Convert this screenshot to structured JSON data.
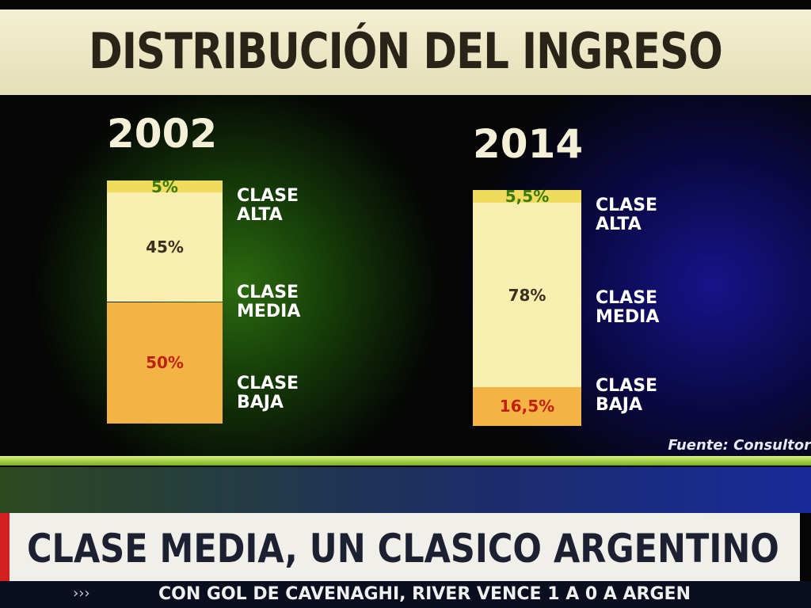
{
  "chart_data": {
    "type": "bar",
    "stacked": true,
    "title": "DISTRIBUCIÓN DEL INGRESO",
    "categories": [
      "2002",
      "2014"
    ],
    "series": [
      {
        "name": "CLASE ALTA",
        "color": "#f0dc5c",
        "values": [
          5,
          5.5
        ],
        "value_labels": [
          "5%",
          "5,5%"
        ]
      },
      {
        "name": "CLASE MEDIA",
        "color": "#f7eeb0",
        "values": [
          45,
          78
        ],
        "value_labels": [
          "45%",
          "78%"
        ]
      },
      {
        "name": "CLASE BAJA",
        "color": "#f4b445",
        "values": [
          50,
          16.5
        ],
        "value_labels": [
          "50%",
          "16,5%"
        ]
      }
    ],
    "source": "Fuente: Consultor"
  },
  "headline": "CLASE MEDIA, UN CLASICO ARGENTINO",
  "ticker": "CON GOL DE CAVENAGHI, RIVER VENCE 1 A 0 A ARGEN"
}
